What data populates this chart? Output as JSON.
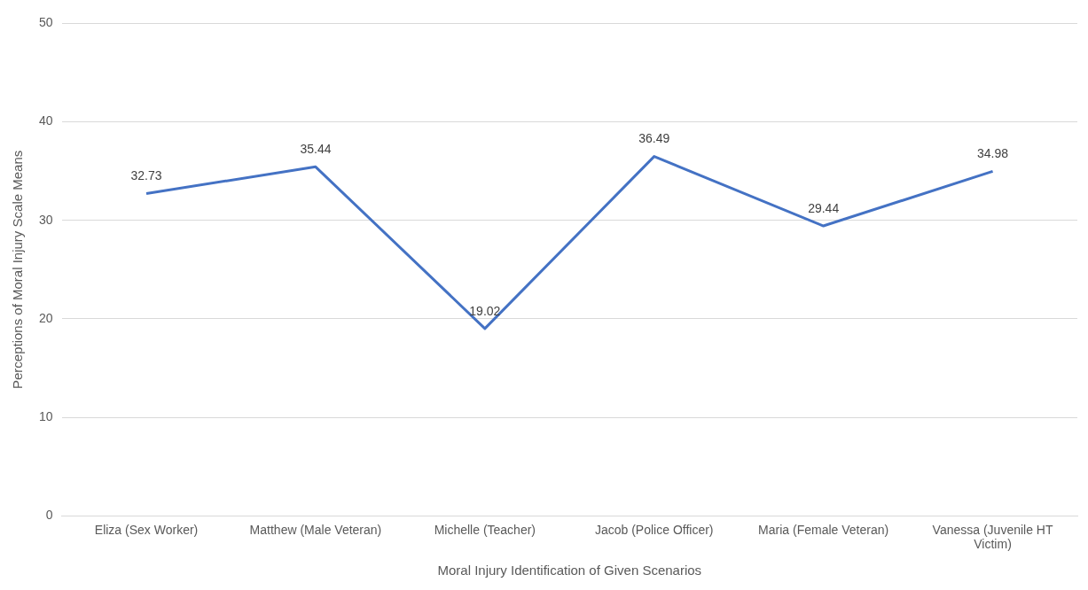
{
  "chart_data": {
    "type": "line",
    "xlabel": "Moral Injury Identification of Given Scenarios",
    "ylabel": "Perceptions of Moral Injury Scale Means",
    "categories": [
      "Eliza (Sex Worker)",
      "Matthew (Male Veteran)",
      "Michelle (Teacher)",
      "Jacob (Police Officer)",
      "Maria (Female Veteran)",
      "Vanessa (Juvenile HT Victim)"
    ],
    "series": [
      {
        "color": "#4472c4",
        "values": [
          32.73,
          35.44,
          19.02,
          36.49,
          29.44,
          34.98
        ]
      }
    ],
    "ylim": [
      0,
      50
    ],
    "yticks": [
      0,
      10,
      20,
      30,
      40,
      50
    ],
    "grid": "y",
    "legend": false,
    "marker": "none",
    "line_style": "solid",
    "data_labels": true
  }
}
